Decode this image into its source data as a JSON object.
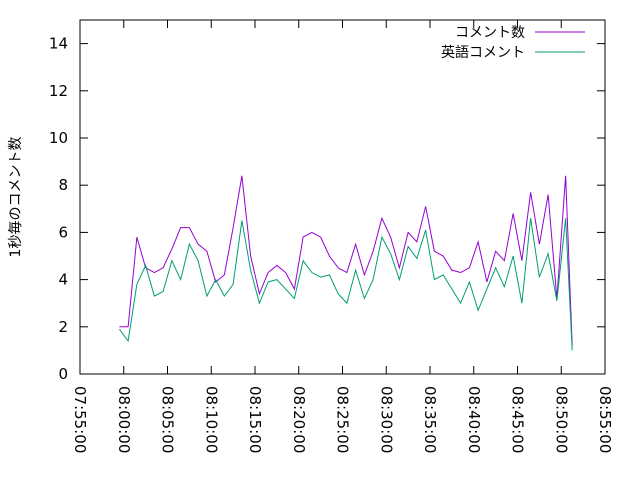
{
  "chart_data": {
    "type": "line",
    "ylabel": "1秒毎のコメント数",
    "x": [
      "07:59:30",
      "08:00:30",
      "08:01:30",
      "08:02:30",
      "08:03:30",
      "08:04:30",
      "08:05:30",
      "08:06:30",
      "08:07:30",
      "08:08:30",
      "08:09:30",
      "08:10:30",
      "08:11:30",
      "08:12:30",
      "08:13:30",
      "08:14:30",
      "08:15:30",
      "08:16:30",
      "08:17:30",
      "08:18:30",
      "08:19:30",
      "08:20:30",
      "08:21:30",
      "08:22:30",
      "08:23:30",
      "08:24:30",
      "08:25:30",
      "08:26:30",
      "08:27:30",
      "08:28:30",
      "08:29:30",
      "08:30:30",
      "08:31:30",
      "08:32:30",
      "08:33:30",
      "08:34:30",
      "08:35:30",
      "08:36:30",
      "08:37:30",
      "08:38:30",
      "08:39:30",
      "08:40:30",
      "08:41:30",
      "08:42:30",
      "08:43:30",
      "08:44:30",
      "08:45:30",
      "08:46:30",
      "08:47:30",
      "08:48:30",
      "08:49:30",
      "08:50:30",
      "08:51:15"
    ],
    "series": [
      {
        "name": "コメント数",
        "color": "#9400d3",
        "values": [
          2.0,
          2.0,
          5.8,
          4.5,
          4.3,
          4.5,
          5.3,
          6.2,
          6.2,
          5.5,
          5.2,
          3.9,
          4.2,
          6.2,
          8.4,
          5.0,
          3.4,
          4.3,
          4.6,
          4.3,
          3.6,
          5.8,
          6.0,
          5.8,
          5.0,
          4.5,
          4.3,
          5.5,
          4.2,
          5.2,
          6.6,
          5.8,
          4.5,
          6.0,
          5.6,
          7.1,
          5.2,
          5.0,
          4.4,
          4.3,
          4.5,
          5.6,
          3.9,
          5.2,
          4.8,
          6.8,
          4.8,
          7.7,
          5.5,
          7.6,
          3.2,
          8.4,
          1.2
        ]
      },
      {
        "name": "英語コメント",
        "color": "#009e73",
        "values": [
          1.9,
          1.4,
          3.8,
          4.6,
          3.3,
          3.5,
          4.8,
          4.0,
          5.5,
          4.8,
          3.3,
          4.0,
          3.3,
          3.8,
          6.5,
          4.4,
          3.0,
          3.9,
          4.0,
          3.6,
          3.2,
          4.8,
          4.3,
          4.1,
          4.2,
          3.4,
          3.0,
          4.4,
          3.2,
          4.0,
          5.8,
          5.1,
          4.0,
          5.4,
          4.9,
          6.1,
          4.0,
          4.2,
          3.6,
          3.0,
          3.9,
          2.7,
          3.6,
          4.5,
          3.7,
          5.0,
          3.0,
          6.6,
          4.1,
          5.1,
          3.1,
          6.6,
          1.0
        ]
      }
    ],
    "xlim": [
      "07:55:00",
      "08:55:00"
    ],
    "xticks": [
      "07:55:00",
      "08:00:00",
      "08:05:00",
      "08:10:00",
      "08:15:00",
      "08:20:00",
      "08:25:00",
      "08:30:00",
      "08:35:00",
      "08:40:00",
      "08:45:00",
      "08:50:00",
      "08:55:00"
    ],
    "ylim": [
      0,
      15
    ],
    "yticks": [
      0,
      2,
      4,
      6,
      8,
      10,
      12,
      14
    ],
    "legend": "top-right"
  }
}
